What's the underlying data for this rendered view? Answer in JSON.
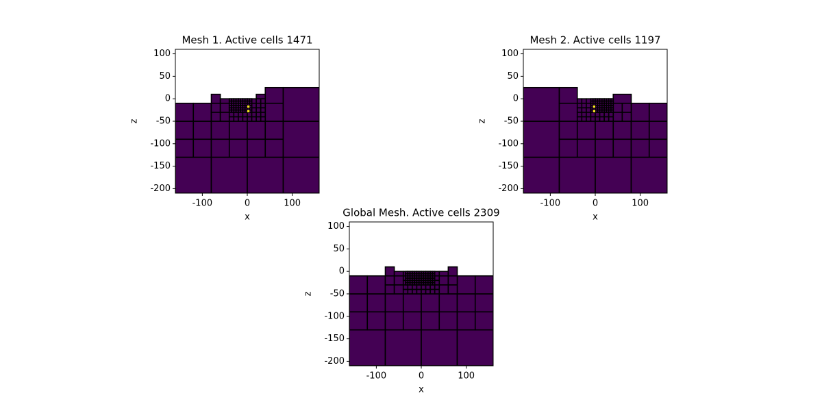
{
  "chart_data": [
    {
      "type": "mesh",
      "title": "Mesh 1. Active cells 1471",
      "xlabel": "x",
      "ylabel": "z",
      "xlim": [
        -160,
        160
      ],
      "ylim": [
        -210,
        110
      ],
      "xticks": [
        -100,
        0,
        100
      ],
      "yticks": [
        -200,
        -150,
        -100,
        -50,
        0,
        50,
        100
      ],
      "color": "#440154",
      "edge_color": "#000000",
      "highlight_color": "#fde725",
      "blocks": [
        {
          "x": [
            -160,
            -80,
            0,
            80,
            160
          ],
          "z": [
            -210,
            -130
          ]
        },
        {
          "x": [
            -160,
            -120,
            -80,
            -40,
            0,
            40,
            80
          ],
          "z": [
            -130,
            -90,
            -50
          ]
        },
        {
          "x": [
            80,
            160
          ],
          "z": [
            -130,
            -50
          ]
        },
        {
          "x": [
            -160,
            -120,
            -80
          ],
          "z": [
            -50,
            -10
          ]
        },
        {
          "x": [
            40,
            80
          ],
          "z": [
            -50,
            -10,
            25
          ]
        },
        {
          "x": [
            80,
            160
          ],
          "z": [
            -50,
            25
          ]
        },
        {
          "x": [
            -80,
            -60,
            -40
          ],
          "z": [
            -50,
            -30,
            -10
          ]
        },
        {
          "x": [
            -80,
            -60
          ],
          "z": [
            -10,
            10
          ]
        },
        {
          "x": [
            -60,
            -40
          ],
          "z": [
            -10,
            0
          ]
        },
        {
          "x": [
            -40,
            -30,
            -20,
            -10,
            0,
            10,
            20,
            30,
            40
          ],
          "z": [
            -50,
            -40,
            -30,
            -20,
            -10,
            0
          ]
        },
        {
          "x": [
            20,
            40
          ],
          "z": [
            0,
            10
          ]
        },
        {
          "x": [
            -40,
            -35,
            -30,
            -25,
            -20,
            -15,
            -10,
            -5,
            0,
            5,
            10
          ],
          "z": [
            -30,
            -25,
            -20,
            -15,
            -10,
            -5,
            0
          ]
        }
      ],
      "highlights": [
        [
          0,
          5,
          -20,
          -15
        ],
        [
          0,
          5,
          -30,
          -25
        ]
      ]
    },
    {
      "type": "mesh",
      "title": "Mesh 2. Active cells 1197",
      "xlabel": "x",
      "ylabel": "z",
      "xlim": [
        -160,
        160
      ],
      "ylim": [
        -210,
        110
      ],
      "xticks": [
        -100,
        0,
        100
      ],
      "yticks": [
        -200,
        -150,
        -100,
        -50,
        0,
        50,
        100
      ],
      "color": "#440154",
      "edge_color": "#000000",
      "highlight_color": "#fde725",
      "blocks": [
        {
          "x": [
            -160,
            -80,
            0,
            80,
            160
          ],
          "z": [
            -210,
            -130
          ]
        },
        {
          "x": [
            -160,
            -80
          ],
          "z": [
            -130,
            -50
          ]
        },
        {
          "x": [
            -80,
            -40,
            0,
            40,
            80,
            120,
            160
          ],
          "z": [
            -130,
            -90,
            -50
          ]
        },
        {
          "x": [
            -160,
            -80
          ],
          "z": [
            -50,
            25
          ]
        },
        {
          "x": [
            -80,
            -40
          ],
          "z": [
            -50,
            -10,
            25
          ]
        },
        {
          "x": [
            80,
            120,
            160
          ],
          "z": [
            -50,
            -10
          ]
        },
        {
          "x": [
            40,
            60,
            80
          ],
          "z": [
            -50,
            -30,
            -10
          ]
        },
        {
          "x": [
            40,
            80
          ],
          "z": [
            -10,
            10
          ]
        },
        {
          "x": [
            -40,
            -30,
            -20,
            -10,
            0,
            10,
            20,
            30,
            40
          ],
          "z": [
            -50,
            -40,
            -30,
            -20,
            -10,
            0
          ]
        },
        {
          "x": [
            -10,
            -5,
            0,
            5,
            10,
            15,
            20,
            25,
            30,
            35,
            40
          ],
          "z": [
            -30,
            -25,
            -20,
            -15,
            -10,
            -5,
            0
          ]
        }
      ],
      "highlights": [
        [
          -5,
          0,
          -20,
          -15
        ],
        [
          -5,
          0,
          -30,
          -25
        ]
      ]
    },
    {
      "type": "mesh",
      "title": "Global Mesh. Active cells 2309",
      "xlabel": "x",
      "ylabel": "z",
      "xlim": [
        -160,
        160
      ],
      "ylim": [
        -210,
        110
      ],
      "xticks": [
        -100,
        0,
        100
      ],
      "yticks": [
        -200,
        -150,
        -100,
        -50,
        0,
        50,
        100
      ],
      "color": "#440154",
      "edge_color": "#000000",
      "highlight_color": "#fde725",
      "blocks": [
        {
          "x": [
            -160,
            -80,
            0,
            80,
            160
          ],
          "z": [
            -210,
            -130
          ]
        },
        {
          "x": [
            -160,
            -120,
            -80,
            -40,
            0,
            40,
            80,
            120,
            160
          ],
          "z": [
            -130,
            -90,
            -50
          ]
        },
        {
          "x": [
            -160,
            -120,
            -80
          ],
          "z": [
            -50,
            -10
          ]
        },
        {
          "x": [
            80,
            120,
            160
          ],
          "z": [
            -50,
            -10
          ]
        },
        {
          "x": [
            -80,
            -60,
            -40
          ],
          "z": [
            -50,
            -30,
            -10
          ]
        },
        {
          "x": [
            40,
            60,
            80
          ],
          "z": [
            -50,
            -30,
            -10
          ]
        },
        {
          "x": [
            -80,
            -60
          ],
          "z": [
            -10,
            10
          ]
        },
        {
          "x": [
            -60,
            -40
          ],
          "z": [
            -10,
            0
          ]
        },
        {
          "x": [
            40,
            60
          ],
          "z": [
            -10,
            0
          ]
        },
        {
          "x": [
            60,
            80
          ],
          "z": [
            -10,
            10
          ]
        },
        {
          "x": [
            -40,
            -30,
            -20,
            -10,
            0,
            10,
            20,
            30,
            40
          ],
          "z": [
            -50,
            -40,
            -30,
            -20,
            -10,
            0
          ]
        },
        {
          "x": [
            -35,
            -30,
            -25,
            -20,
            -15,
            -10,
            -5,
            0,
            5,
            10,
            15,
            20,
            25,
            30
          ],
          "z": [
            -30,
            -25,
            -20,
            -15,
            -10,
            -5,
            0
          ]
        }
      ],
      "highlights": []
    }
  ]
}
